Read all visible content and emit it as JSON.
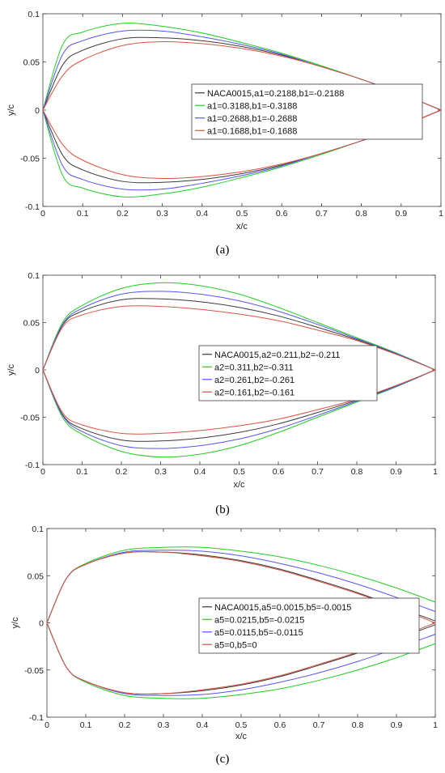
{
  "chart_data": [
    {
      "type": "line",
      "caption": "(a)",
      "xlabel": "x/c",
      "ylabel": "y/c",
      "xlim": [
        0,
        1
      ],
      "ylim": [
        -0.1,
        0.1
      ],
      "xticks": [
        "0",
        "0.1",
        "0.2",
        "0.3",
        "0.4",
        "0.5",
        "0.6",
        "0.7",
        "0.8",
        "0.9",
        "1"
      ],
      "yticks": [
        "0.1",
        "0.05",
        "0",
        "-0.05",
        "-0.1"
      ],
      "legend_position": "right",
      "series": [
        {
          "name": "NACA0015,a1=0.2188,b1=-0.2188",
          "color": "#3a3a3a",
          "x": [
            0,
            0.05,
            0.1,
            0.2,
            0.3,
            0.4,
            0.5,
            0.6,
            0.7,
            0.8,
            0.9,
            1.0
          ],
          "upper": [
            0,
            0.047,
            0.062,
            0.074,
            0.075,
            0.072,
            0.066,
            0.057,
            0.045,
            0.032,
            0.017,
            0
          ],
          "lower": [
            0,
            -0.047,
            -0.062,
            -0.074,
            -0.075,
            -0.072,
            -0.066,
            -0.057,
            -0.045,
            -0.032,
            -0.017,
            0
          ]
        },
        {
          "name": "a1=0.3188,b1=-0.3188",
          "color": "#22cc22",
          "x": [
            0,
            0.05,
            0.1,
            0.2,
            0.3,
            0.4,
            0.5,
            0.6,
            0.7,
            0.8,
            0.9,
            1.0
          ],
          "upper": [
            0,
            0.068,
            0.081,
            0.09,
            0.087,
            0.08,
            0.07,
            0.059,
            0.046,
            0.032,
            0.017,
            0
          ],
          "lower": [
            0,
            -0.068,
            -0.081,
            -0.09,
            -0.087,
            -0.08,
            -0.07,
            -0.059,
            -0.046,
            -0.032,
            -0.017,
            0
          ]
        },
        {
          "name": "a1=0.2688,b1=-0.2688",
          "color": "#5555ee",
          "x": [
            0,
            0.05,
            0.1,
            0.2,
            0.3,
            0.4,
            0.5,
            0.6,
            0.7,
            0.8,
            0.9,
            1.0
          ],
          "upper": [
            0,
            0.058,
            0.072,
            0.082,
            0.082,
            0.076,
            0.068,
            0.058,
            0.045,
            0.032,
            0.017,
            0
          ],
          "lower": [
            0,
            -0.058,
            -0.072,
            -0.082,
            -0.082,
            -0.076,
            -0.068,
            -0.058,
            -0.045,
            -0.032,
            -0.017,
            0
          ]
        },
        {
          "name": "a1=0.1688,b1=-0.1688",
          "color": "#d9533f",
          "x": [
            0,
            0.05,
            0.1,
            0.2,
            0.3,
            0.4,
            0.5,
            0.6,
            0.7,
            0.8,
            0.9,
            1.0
          ],
          "upper": [
            0,
            0.036,
            0.052,
            0.067,
            0.071,
            0.069,
            0.064,
            0.056,
            0.045,
            0.032,
            0.017,
            0
          ],
          "lower": [
            0,
            -0.036,
            -0.052,
            -0.067,
            -0.071,
            -0.069,
            -0.064,
            -0.056,
            -0.045,
            -0.032,
            -0.017,
            0
          ]
        }
      ]
    },
    {
      "type": "line",
      "caption": "(b)",
      "xlabel": "x/c",
      "ylabel": "y/c",
      "xlim": [
        0,
        1
      ],
      "ylim": [
        -0.1,
        0.1
      ],
      "xticks": [
        "0",
        "0.1",
        "0.2",
        "0.3",
        "0.4",
        "0.5",
        "0.6",
        "0.7",
        "0.8",
        "0.9",
        "1"
      ],
      "yticks": [
        "0.1",
        "0.05",
        "0",
        "-0.05",
        "-0.1"
      ],
      "legend_position": "right",
      "series": [
        {
          "name": "NACA0015,a2=0.211,b2=-0.211",
          "color": "#3a3a3a",
          "x": [
            0,
            0.05,
            0.1,
            0.2,
            0.3,
            0.4,
            0.5,
            0.6,
            0.7,
            0.8,
            0.9,
            1.0
          ],
          "upper": [
            0,
            0.047,
            0.062,
            0.074,
            0.075,
            0.072,
            0.066,
            0.057,
            0.045,
            0.032,
            0.017,
            0
          ],
          "lower": [
            0,
            -0.047,
            -0.062,
            -0.074,
            -0.075,
            -0.072,
            -0.066,
            -0.057,
            -0.045,
            -0.032,
            -0.017,
            0
          ]
        },
        {
          "name": "a2=0.311,b2=-0.311",
          "color": "#22cc22",
          "x": [
            0,
            0.05,
            0.1,
            0.2,
            0.3,
            0.4,
            0.5,
            0.6,
            0.7,
            0.8,
            0.9,
            1.0
          ],
          "upper": [
            0,
            0.05,
            0.068,
            0.086,
            0.092,
            0.089,
            0.08,
            0.066,
            0.05,
            0.034,
            0.018,
            0
          ],
          "lower": [
            0,
            -0.05,
            -0.068,
            -0.086,
            -0.092,
            -0.089,
            -0.08,
            -0.066,
            -0.05,
            -0.034,
            -0.018,
            0
          ]
        },
        {
          "name": "a2=0.261,b2=-0.261",
          "color": "#5555ee",
          "x": [
            0,
            0.05,
            0.1,
            0.2,
            0.3,
            0.4,
            0.5,
            0.6,
            0.7,
            0.8,
            0.9,
            1.0
          ],
          "upper": [
            0,
            0.048,
            0.065,
            0.08,
            0.083,
            0.08,
            0.073,
            0.062,
            0.048,
            0.033,
            0.0175,
            0
          ],
          "lower": [
            0,
            -0.048,
            -0.065,
            -0.08,
            -0.083,
            -0.08,
            -0.073,
            -0.062,
            -0.048,
            -0.033,
            -0.0175,
            0
          ]
        },
        {
          "name": "a2=0.161,b2=-0.161",
          "color": "#d9533f",
          "x": [
            0,
            0.05,
            0.1,
            0.2,
            0.3,
            0.4,
            0.5,
            0.6,
            0.7,
            0.8,
            0.9,
            1.0
          ],
          "upper": [
            0,
            0.045,
            0.058,
            0.067,
            0.067,
            0.064,
            0.059,
            0.052,
            0.042,
            0.031,
            0.0165,
            0
          ],
          "lower": [
            0,
            -0.045,
            -0.058,
            -0.067,
            -0.067,
            -0.064,
            -0.059,
            -0.052,
            -0.042,
            -0.031,
            -0.0165,
            0
          ]
        }
      ]
    },
    {
      "type": "line",
      "caption": "(c)",
      "xlabel": "x/c",
      "ylabel": "y/c",
      "xlim": [
        0,
        1
      ],
      "ylim": [
        -0.1,
        0.1
      ],
      "xticks": [
        "0",
        "0.1",
        "0.2",
        "0.3",
        "0.4",
        "0.5",
        "0.6",
        "0.7",
        "0.8",
        "0.9",
        "1"
      ],
      "yticks": [
        "0.1",
        "0.05",
        "0",
        "-0.05",
        "-0.1"
      ],
      "legend_position": "right",
      "series": [
        {
          "name": "NACA0015,a5=0.0015,b5=-0.0015",
          "color": "#3a3a3a",
          "x": [
            0,
            0.05,
            0.1,
            0.2,
            0.3,
            0.4,
            0.5,
            0.6,
            0.7,
            0.8,
            0.9,
            1.0
          ],
          "upper": [
            0,
            0.047,
            0.062,
            0.074,
            0.075,
            0.072,
            0.066,
            0.057,
            0.045,
            0.032,
            0.017,
            0.002
          ],
          "lower": [
            0,
            -0.047,
            -0.062,
            -0.074,
            -0.075,
            -0.072,
            -0.066,
            -0.057,
            -0.045,
            -0.032,
            -0.017,
            -0.002
          ]
        },
        {
          "name": "a5=0.0215,b5=-0.0215",
          "color": "#22cc22",
          "x": [
            0,
            0.05,
            0.1,
            0.2,
            0.3,
            0.4,
            0.5,
            0.6,
            0.7,
            0.8,
            0.9,
            1.0
          ],
          "upper": [
            0,
            0.047,
            0.063,
            0.077,
            0.08,
            0.08,
            0.076,
            0.07,
            0.061,
            0.05,
            0.037,
            0.022
          ],
          "lower": [
            0,
            -0.047,
            -0.063,
            -0.077,
            -0.08,
            -0.08,
            -0.076,
            -0.07,
            -0.061,
            -0.05,
            -0.037,
            -0.022
          ]
        },
        {
          "name": "a5=0.0115,b5=-0.0115",
          "color": "#5555ee",
          "x": [
            0,
            0.05,
            0.1,
            0.2,
            0.3,
            0.4,
            0.5,
            0.6,
            0.7,
            0.8,
            0.9,
            1.0
          ],
          "upper": [
            0,
            0.047,
            0.062,
            0.075,
            0.077,
            0.076,
            0.071,
            0.063,
            0.053,
            0.041,
            0.027,
            0.012
          ],
          "lower": [
            0,
            -0.047,
            -0.062,
            -0.075,
            -0.077,
            -0.076,
            -0.071,
            -0.063,
            -0.053,
            -0.041,
            -0.027,
            -0.012
          ]
        },
        {
          "name": "a5=0,b5=0",
          "color": "#d9533f",
          "x": [
            0,
            0.05,
            0.1,
            0.2,
            0.3,
            0.4,
            0.5,
            0.6,
            0.7,
            0.8,
            0.9,
            1.0
          ],
          "upper": [
            0,
            0.047,
            0.062,
            0.074,
            0.075,
            0.071,
            0.065,
            0.056,
            0.044,
            0.031,
            0.016,
            0
          ],
          "lower": [
            0,
            -0.047,
            -0.062,
            -0.074,
            -0.075,
            -0.071,
            -0.065,
            -0.056,
            -0.044,
            -0.031,
            -0.016,
            0
          ]
        }
      ]
    }
  ]
}
